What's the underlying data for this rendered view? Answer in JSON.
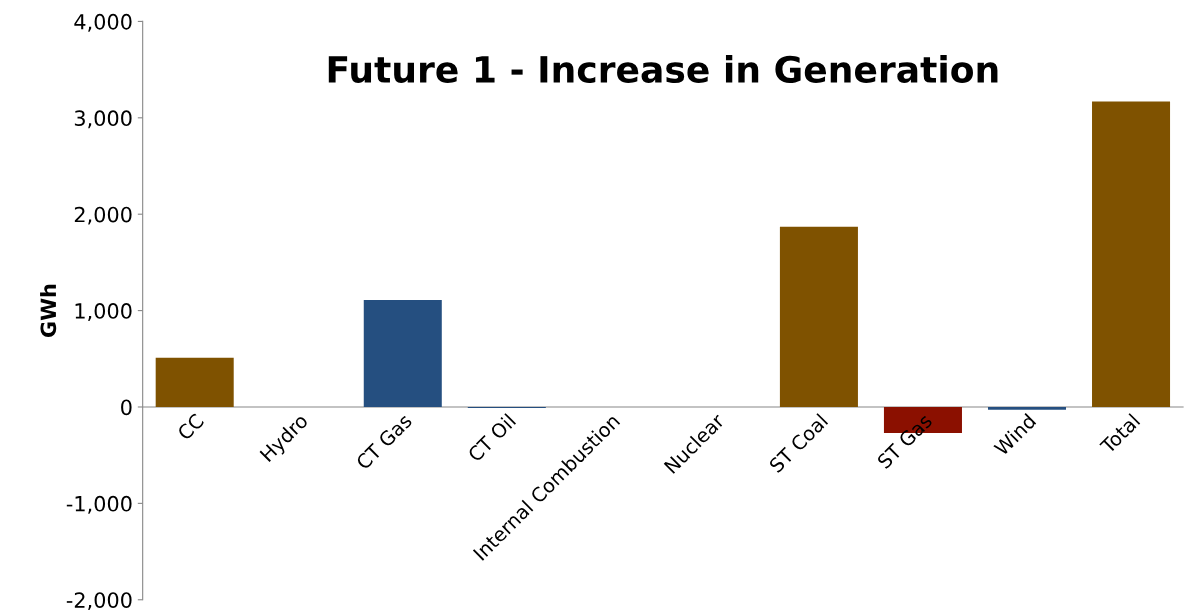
{
  "chart_data": {
    "type": "bar",
    "title": "Future 1 - Increase in Generation",
    "ylabel": "GWh",
    "categories": [
      "CC",
      "Hydro",
      "CT Gas",
      "CT Oil",
      "Internal Combustion",
      "Nuclear",
      "ST Coal",
      "ST Gas",
      "Wind",
      "Total"
    ],
    "values": [
      510,
      0,
      1110,
      -10,
      0,
      0,
      1870,
      -270,
      -30,
      3170
    ],
    "colors": [
      "#7f5200",
      "#254f80",
      "#254f80",
      "#254f80",
      "#254f80",
      "#254f80",
      "#7f5200",
      "#8b1000",
      "#254f80",
      "#7f5200"
    ],
    "ylim": [
      -2000,
      4000
    ],
    "yticks": [
      {
        "value": -2000,
        "label": "-2,000"
      },
      {
        "value": -1000,
        "label": "-1,000"
      },
      {
        "value": 0,
        "label": "0"
      },
      {
        "value": 1000,
        "label": "1,000"
      },
      {
        "value": 2000,
        "label": "2,000"
      },
      {
        "value": 3000,
        "label": "3,000"
      },
      {
        "value": 4000,
        "label": "4,000"
      }
    ],
    "grid": false,
    "legend": false
  }
}
